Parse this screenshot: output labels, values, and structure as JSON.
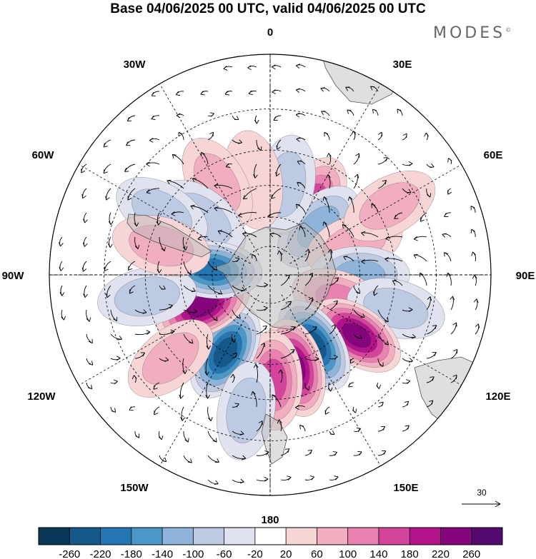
{
  "title": "Base 04/06/2025 00 UTC, valid 04/06/2025 00 UTC",
  "brand": "MODES",
  "brand_mark": "©",
  "longitude_labels": [
    "0",
    "30E",
    "60E",
    "90E",
    "120E",
    "150E",
    "180",
    "150W",
    "120W",
    "90W",
    "60W",
    "30W"
  ],
  "reference_vector": {
    "label": "30"
  },
  "colorbar": {
    "ticks": [
      "-260",
      "-220",
      "-180",
      "-140",
      "-100",
      "-60",
      "-20",
      "20",
      "60",
      "100",
      "140",
      "180",
      "220",
      "260"
    ],
    "colors": [
      "#0a3656",
      "#15588a",
      "#2476b3",
      "#4a97c8",
      "#8eb5d9",
      "#bccbe3",
      "#e1e2ef",
      "#ffffff",
      "#f7d4d6",
      "#f2aec1",
      "#e982b0",
      "#d5449c",
      "#b4128d",
      "#85057c",
      "#520a6e"
    ]
  },
  "anomaly_blobs": [
    {
      "lon": 30,
      "lat": -48,
      "value": 120
    },
    {
      "lon": 45,
      "lat": -55,
      "value": -110
    },
    {
      "lon": 10,
      "lat": -44,
      "value": -40
    },
    {
      "lon": -10,
      "lat": -42,
      "value": 30
    },
    {
      "lon": -30,
      "lat": -38,
      "value": 40
    },
    {
      "lon": -50,
      "lat": -46,
      "value": -40
    },
    {
      "lon": -60,
      "lat": -30,
      "value": -60
    },
    {
      "lon": 70,
      "lat": -45,
      "value": 60
    },
    {
      "lon": 90,
      "lat": -45,
      "value": -100
    },
    {
      "lon": 110,
      "lat": -52,
      "value": 110
    },
    {
      "lon": 105,
      "lat": -28,
      "value": -70
    },
    {
      "lon": 125,
      "lat": -38,
      "value": 200
    },
    {
      "lon": 148,
      "lat": -48,
      "value": -210
    },
    {
      "lon": 165,
      "lat": -42,
      "value": 200
    },
    {
      "lon": 178,
      "lat": -38,
      "value": 130
    },
    {
      "lon": -150,
      "lat": -45,
      "value": -220
    },
    {
      "lon": -115,
      "lat": -52,
      "value": 230
    },
    {
      "lon": -85,
      "lat": -60,
      "value": -160
    },
    {
      "lon": -100,
      "lat": -30,
      "value": -40
    },
    {
      "lon": -130,
      "lat": -28,
      "value": 40
    },
    {
      "lon": -170,
      "lat": -25,
      "value": -40
    },
    {
      "lon": -75,
      "lat": -35,
      "value": 50
    },
    {
      "lon": 60,
      "lat": -25,
      "value": 40
    }
  ]
}
